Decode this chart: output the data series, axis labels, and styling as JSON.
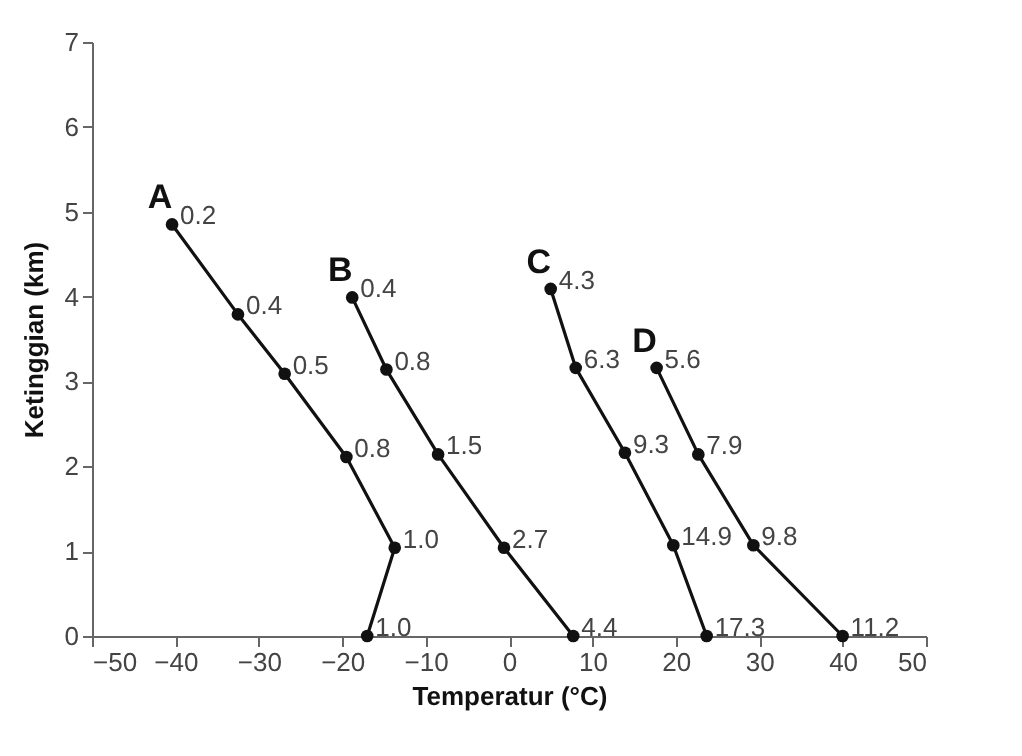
{
  "chart_data": {
    "type": "line",
    "xlabel": "Temperatur (°C)",
    "ylabel": "Ketinggian (km)",
    "xlim": [
      -50,
      50
    ],
    "xticks": [
      -50,
      -40,
      -30,
      -20,
      -10,
      0,
      10,
      20,
      30,
      40,
      50
    ],
    "ylim": [
      0,
      7
    ],
    "yticks": [
      0,
      1,
      2,
      3,
      4,
      5,
      6,
      7
    ],
    "grid": false,
    "marker": "circle",
    "line_style": "solid",
    "series": [
      {
        "name": "A",
        "color": "#111111",
        "x": [
          -17.0,
          -13.7,
          -19.5,
          -26.9,
          -32.5,
          -40.4
        ],
        "values": [
          0,
          1.04,
          2.11,
          3.09,
          3.79,
          4.85
        ]
      },
      {
        "name": "B",
        "color": "#111111",
        "x": [
          7.7,
          -0.6,
          -8.5,
          -14.7,
          -18.8
        ],
        "values": [
          0,
          1.04,
          2.14,
          3.14,
          3.99
        ]
      },
      {
        "name": "C",
        "color": "#111111",
        "x": [
          23.7,
          19.7,
          13.9,
          8.0,
          5.0
        ],
        "values": [
          0,
          1.07,
          2.16,
          3.16,
          4.09
        ]
      },
      {
        "name": "D",
        "color": "#111111",
        "x": [
          40,
          29.3,
          22.7,
          17.7
        ],
        "values": [
          0,
          1.07,
          2.14,
          3.16
        ]
      }
    ],
    "annotations": [
      {
        "text": "1.0",
        "x": -17.0,
        "y": 0
      },
      {
        "text": "1.0",
        "x": -13.7,
        "y": 1.04
      },
      {
        "text": "0.8",
        "x": -19.5,
        "y": 2.11
      },
      {
        "text": "0.5",
        "x": -26.9,
        "y": 3.09
      },
      {
        "text": "0.4",
        "x": -32.5,
        "y": 3.79
      },
      {
        "text": "0.2",
        "x": -40.4,
        "y": 4.85
      },
      {
        "text": "4.4",
        "x": 7.7,
        "y": 0
      },
      {
        "text": "2.7",
        "x": -0.6,
        "y": 1.04
      },
      {
        "text": "1.5",
        "x": -8.5,
        "y": 2.14
      },
      {
        "text": "0.8",
        "x": -14.7,
        "y": 3.14
      },
      {
        "text": "0.4",
        "x": -18.8,
        "y": 3.99
      },
      {
        "text": "17.3",
        "x": 23.7,
        "y": 0
      },
      {
        "text": "14.9",
        "x": 19.7,
        "y": 1.07
      },
      {
        "text": "9.3",
        "x": 13.9,
        "y": 2.16
      },
      {
        "text": "6.3",
        "x": 8.0,
        "y": 3.16
      },
      {
        "text": "4.3",
        "x": 5.0,
        "y": 4.09
      },
      {
        "text": "11.2",
        "x": 40,
        "y": 0
      },
      {
        "text": "9.8",
        "x": 29.3,
        "y": 1.07
      },
      {
        "text": "7.9",
        "x": 22.7,
        "y": 2.14
      },
      {
        "text": "5.6",
        "x": 17.7,
        "y": 3.16
      }
    ]
  }
}
